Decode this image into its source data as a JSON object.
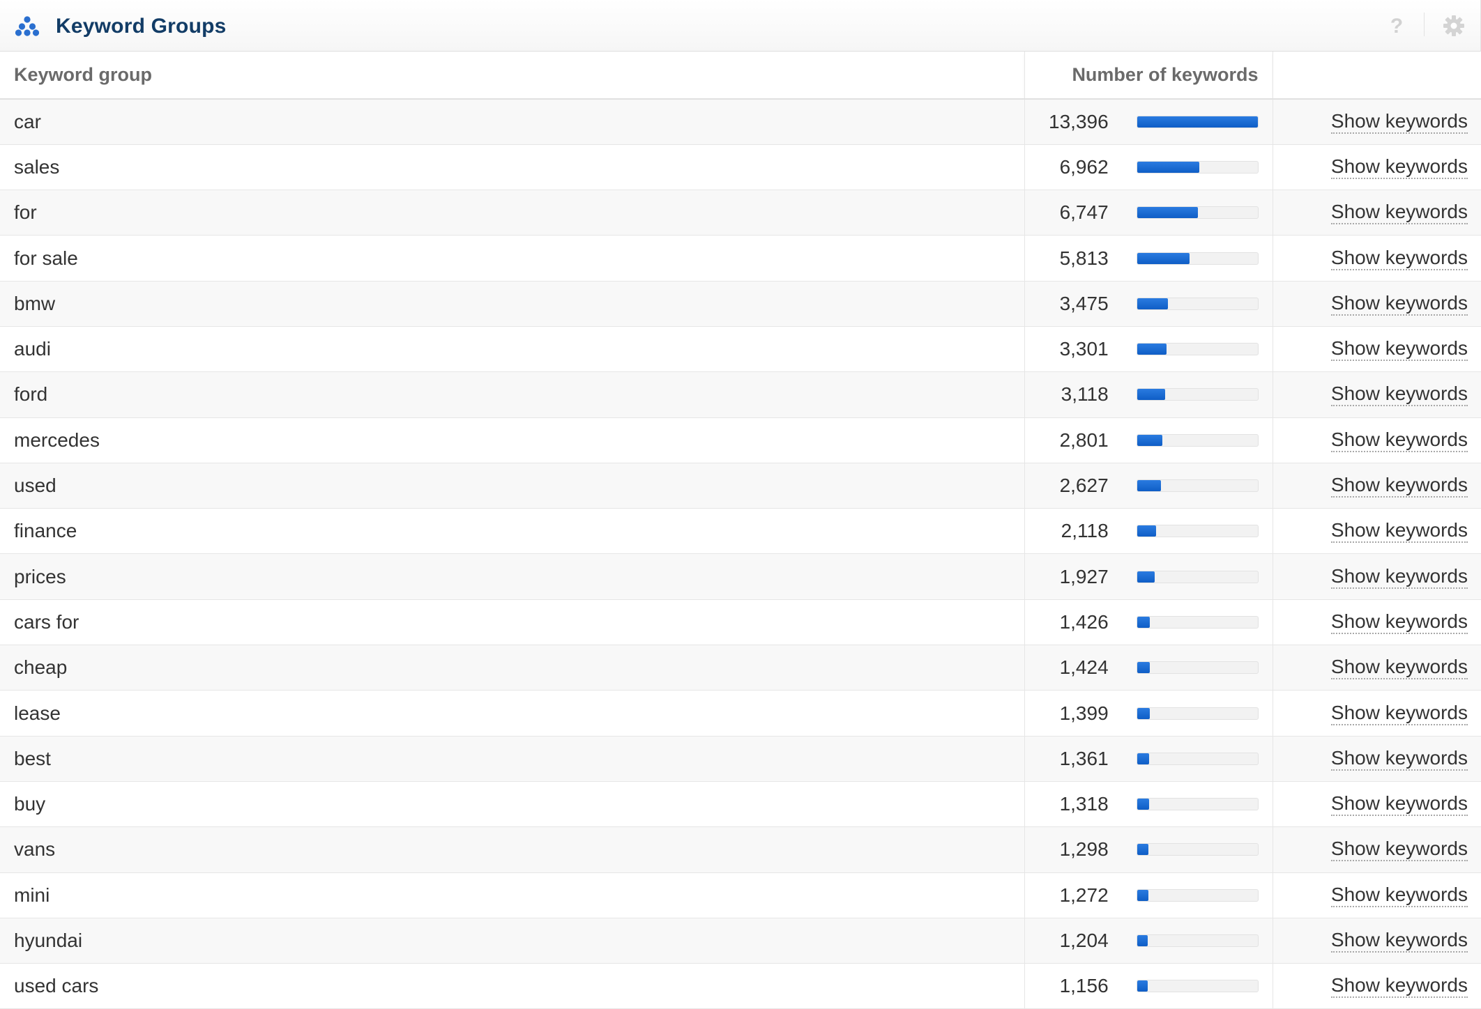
{
  "widget": {
    "title": "Keyword Groups",
    "help_glyph": "?",
    "icons": {
      "title_icon": "keyword-groups-icon",
      "help_icon": "question-mark-icon",
      "settings_icon": "gear-icon"
    },
    "colors": {
      "title": "#123c66",
      "bar": "#1565d0",
      "accent_icon": "#2a6fcf"
    }
  },
  "table": {
    "headers": {
      "group": "Keyword group",
      "count": "Number of keywords",
      "action": ""
    },
    "max_count": 13396,
    "rows": [
      {
        "group": "car",
        "count_label": "13,396",
        "count": 13396,
        "action": "Show keywords"
      },
      {
        "group": "sales",
        "count_label": "6,962",
        "count": 6962,
        "action": "Show keywords"
      },
      {
        "group": "for",
        "count_label": "6,747",
        "count": 6747,
        "action": "Show keywords"
      },
      {
        "group": "for sale",
        "count_label": "5,813",
        "count": 5813,
        "action": "Show keywords"
      },
      {
        "group": "bmw",
        "count_label": "3,475",
        "count": 3475,
        "action": "Show keywords"
      },
      {
        "group": "audi",
        "count_label": "3,301",
        "count": 3301,
        "action": "Show keywords"
      },
      {
        "group": "ford",
        "count_label": "3,118",
        "count": 3118,
        "action": "Show keywords"
      },
      {
        "group": "mercedes",
        "count_label": "2,801",
        "count": 2801,
        "action": "Show keywords"
      },
      {
        "group": "used",
        "count_label": "2,627",
        "count": 2627,
        "action": "Show keywords"
      },
      {
        "group": "finance",
        "count_label": "2,118",
        "count": 2118,
        "action": "Show keywords"
      },
      {
        "group": "prices",
        "count_label": "1,927",
        "count": 1927,
        "action": "Show keywords"
      },
      {
        "group": "cars for",
        "count_label": "1,426",
        "count": 1426,
        "action": "Show keywords"
      },
      {
        "group": "cheap",
        "count_label": "1,424",
        "count": 1424,
        "action": "Show keywords"
      },
      {
        "group": "lease",
        "count_label": "1,399",
        "count": 1399,
        "action": "Show keywords"
      },
      {
        "group": "best",
        "count_label": "1,361",
        "count": 1361,
        "action": "Show keywords"
      },
      {
        "group": "buy",
        "count_label": "1,318",
        "count": 1318,
        "action": "Show keywords"
      },
      {
        "group": "vans",
        "count_label": "1,298",
        "count": 1298,
        "action": "Show keywords"
      },
      {
        "group": "mini",
        "count_label": "1,272",
        "count": 1272,
        "action": "Show keywords"
      },
      {
        "group": "hyundai",
        "count_label": "1,204",
        "count": 1204,
        "action": "Show keywords"
      },
      {
        "group": "used cars",
        "count_label": "1,156",
        "count": 1156,
        "action": "Show keywords"
      }
    ]
  }
}
